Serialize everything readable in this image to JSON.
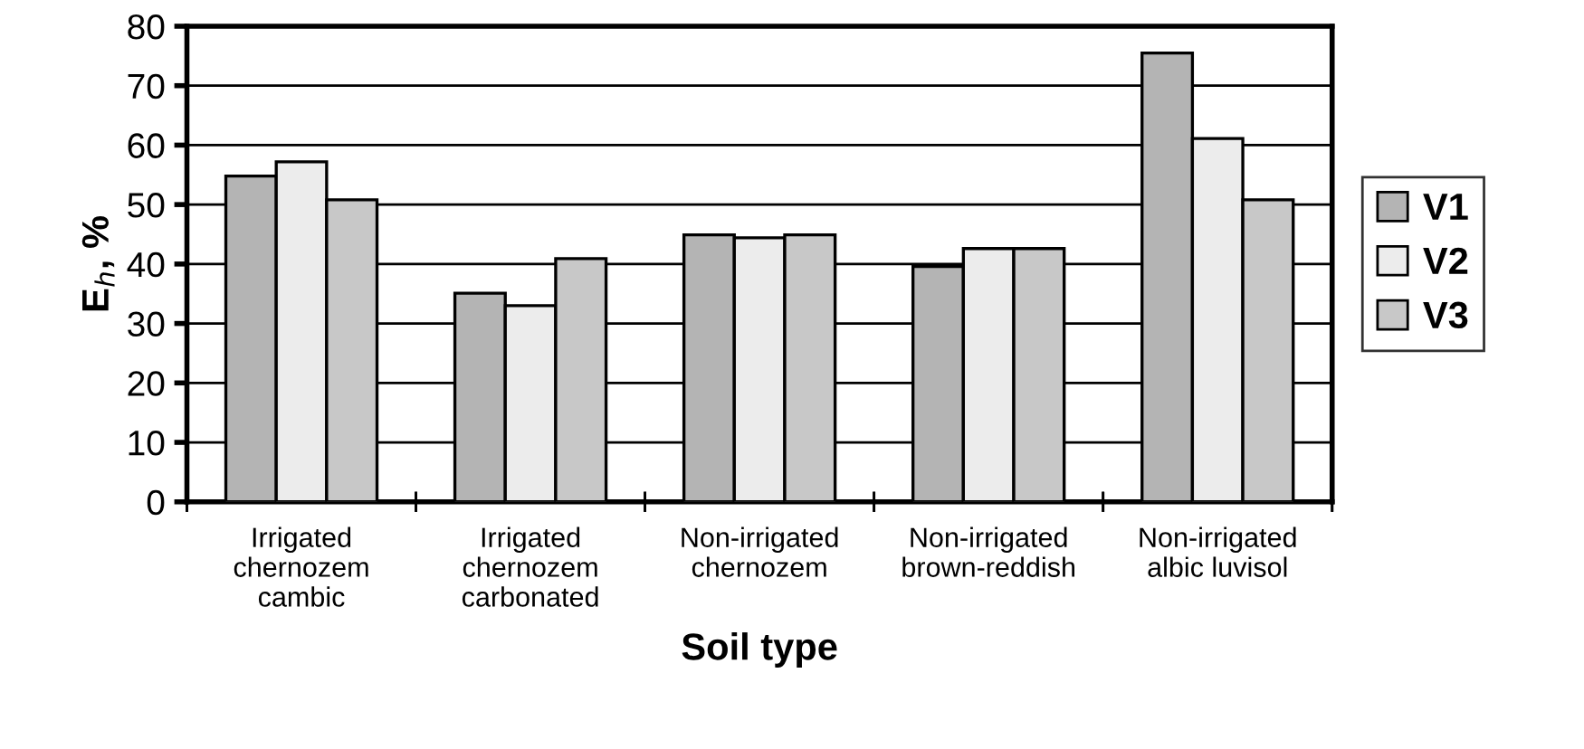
{
  "chart_data": {
    "type": "bar",
    "xlabel": "Soil type",
    "ylabel": "E$_{h}$, %",
    "categories": [
      "Irrigated\nchernozem\ncambic",
      "Irrigated\nchernozem\ncarbonated",
      "Non-irrigated\nchernozem",
      "Non-irrigated\nbrown-reddish",
      "Non-irrigated\nalbic luvisol"
    ],
    "series": [
      {
        "name": "V1",
        "color": "#b4b4b4",
        "values": [
          54.8,
          35.1,
          44.9,
          39.6,
          75.5
        ]
      },
      {
        "name": "V2",
        "color": "#ececec",
        "values": [
          57.2,
          33.0,
          44.4,
          42.6,
          61.1
        ]
      },
      {
        "name": "V3",
        "color": "#c8c8c8",
        "values": [
          50.8,
          40.9,
          44.9,
          42.6,
          50.8
        ]
      }
    ],
    "ylim": [
      0,
      80
    ],
    "yticks": [
      0,
      10,
      20,
      30,
      40,
      50,
      60,
      70,
      80
    ],
    "grid": "y",
    "legend": "right"
  }
}
